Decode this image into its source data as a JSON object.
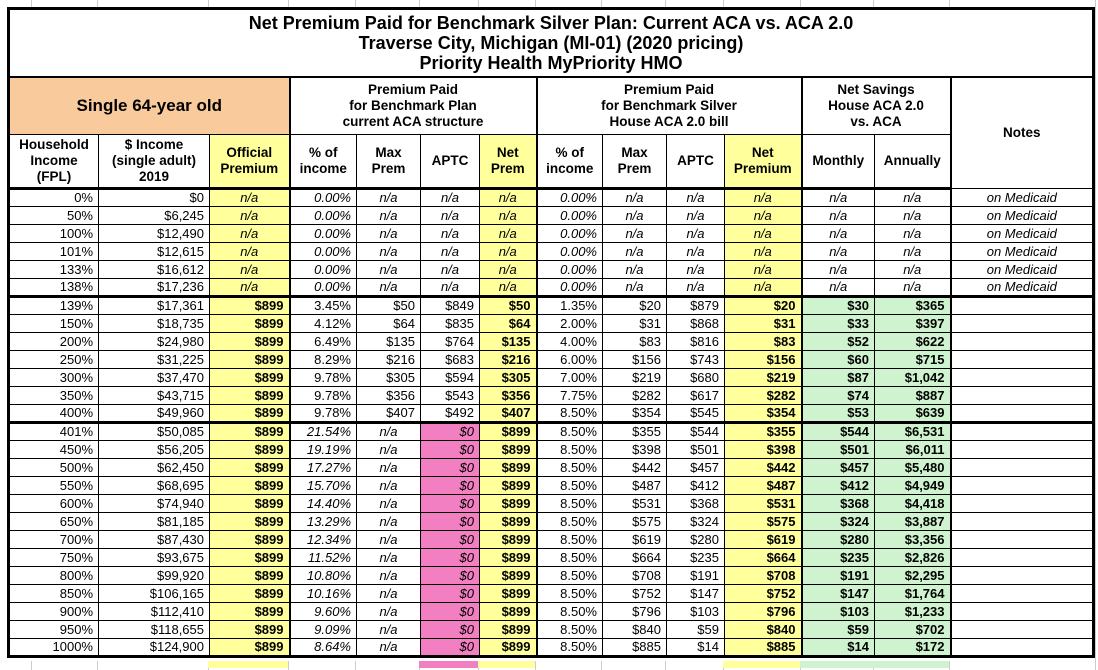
{
  "title_lines": [
    "Net Premium Paid for Benchmark Silver Plan: Current ACA vs. ACA 2.0",
    "Traverse City, Michigan (MI-01) (2020 pricing)",
    "Priority Health MyPriority HMO"
  ],
  "colors": {
    "orange": "#F9CB9C",
    "yellow": "#FFFF9C",
    "green": "#CFF3CF",
    "pink": "#F27FC1",
    "faint": "#CCCCCC"
  },
  "groups": {
    "demographic": "Single 64-year old",
    "current_aca": "Premium Paid\nfor Benchmark Plan\ncurrent ACA structure",
    "aca2": "Premium Paid\nfor Benchmark Silver\nHouse ACA 2.0 bill",
    "savings": "Net Savings\nHouse ACA 2.0\nvs. ACA",
    "notes": "Notes"
  },
  "table": {
    "col_keys": [
      "fpl",
      "income",
      "official",
      "aca_pct",
      "aca_max",
      "aca_aptc",
      "aca_net",
      "h_pct",
      "h_max",
      "h_aptc",
      "h_net",
      "monthly",
      "annually",
      "notes"
    ],
    "columns": [
      "Household\nIncome\n(FPL)",
      "$ Income\n(single adult)\n2019",
      "Official\nPremium",
      "% of\nincome",
      "Max\nPrem",
      "APTC",
      "Net\nPrem",
      "% of\nincome",
      "Max\nPrem",
      "APTC",
      "Net\nPremium",
      "Monthly",
      "Annually"
    ],
    "rows": [
      {
        "type": "medicaid",
        "cells": [
          "0%",
          "$0",
          "n/a",
          "0.00%",
          "n/a",
          "n/a",
          "n/a",
          "0.00%",
          "n/a",
          "n/a",
          "n/a",
          "n/a",
          "n/a",
          "on Medicaid"
        ]
      },
      {
        "type": "medicaid",
        "cells": [
          "50%",
          "$6,245",
          "n/a",
          "0.00%",
          "n/a",
          "n/a",
          "n/a",
          "0.00%",
          "n/a",
          "n/a",
          "n/a",
          "n/a",
          "n/a",
          "on Medicaid"
        ]
      },
      {
        "type": "medicaid",
        "cells": [
          "100%",
          "$12,490",
          "n/a",
          "0.00%",
          "n/a",
          "n/a",
          "n/a",
          "0.00%",
          "n/a",
          "n/a",
          "n/a",
          "n/a",
          "n/a",
          "on Medicaid"
        ]
      },
      {
        "type": "medicaid",
        "cells": [
          "101%",
          "$12,615",
          "n/a",
          "0.00%",
          "n/a",
          "n/a",
          "n/a",
          "0.00%",
          "n/a",
          "n/a",
          "n/a",
          "n/a",
          "n/a",
          "on Medicaid"
        ]
      },
      {
        "type": "medicaid",
        "cells": [
          "133%",
          "$16,612",
          "n/a",
          "0.00%",
          "n/a",
          "n/a",
          "n/a",
          "0.00%",
          "n/a",
          "n/a",
          "n/a",
          "n/a",
          "n/a",
          "on Medicaid"
        ]
      },
      {
        "type": "medicaid",
        "cells": [
          "138%",
          "$17,236",
          "n/a",
          "0.00%",
          "n/a",
          "n/a",
          "n/a",
          "0.00%",
          "n/a",
          "n/a",
          "n/a",
          "n/a",
          "n/a",
          "on Medicaid"
        ]
      },
      {
        "type": "subsidized",
        "thick_top": true,
        "cells": [
          "139%",
          "$17,361",
          "$899",
          "3.45%",
          "$50",
          "$849",
          "$50",
          "1.35%",
          "$20",
          "$879",
          "$20",
          "$30",
          "$365",
          ""
        ]
      },
      {
        "type": "subsidized",
        "cells": [
          "150%",
          "$18,735",
          "$899",
          "4.12%",
          "$64",
          "$835",
          "$64",
          "2.00%",
          "$31",
          "$868",
          "$31",
          "$33",
          "$397",
          ""
        ]
      },
      {
        "type": "subsidized",
        "cells": [
          "200%",
          "$24,980",
          "$899",
          "6.49%",
          "$135",
          "$764",
          "$135",
          "4.00%",
          "$83",
          "$816",
          "$83",
          "$52",
          "$622",
          ""
        ]
      },
      {
        "type": "subsidized",
        "cells": [
          "250%",
          "$31,225",
          "$899",
          "8.29%",
          "$216",
          "$683",
          "$216",
          "6.00%",
          "$156",
          "$743",
          "$156",
          "$60",
          "$715",
          ""
        ]
      },
      {
        "type": "subsidized",
        "cells": [
          "300%",
          "$37,470",
          "$899",
          "9.78%",
          "$305",
          "$594",
          "$305",
          "7.00%",
          "$219",
          "$680",
          "$219",
          "$87",
          "$1,042",
          ""
        ]
      },
      {
        "type": "subsidized",
        "cells": [
          "350%",
          "$43,715",
          "$899",
          "9.78%",
          "$356",
          "$543",
          "$356",
          "7.75%",
          "$282",
          "$617",
          "$282",
          "$74",
          "$887",
          ""
        ]
      },
      {
        "type": "subsidized",
        "cells": [
          "400%",
          "$49,960",
          "$899",
          "9.78%",
          "$407",
          "$492",
          "$407",
          "8.50%",
          "$354",
          "$545",
          "$354",
          "$53",
          "$639",
          ""
        ]
      },
      {
        "type": "full",
        "thick_top": true,
        "cells": [
          "401%",
          "$50,085",
          "$899",
          "21.54%",
          "n/a",
          "$0",
          "$899",
          "8.50%",
          "$355",
          "$544",
          "$355",
          "$544",
          "$6,531",
          ""
        ]
      },
      {
        "type": "full",
        "cells": [
          "450%",
          "$56,205",
          "$899",
          "19.19%",
          "n/a",
          "$0",
          "$899",
          "8.50%",
          "$398",
          "$501",
          "$398",
          "$501",
          "$6,011",
          ""
        ]
      },
      {
        "type": "full",
        "cells": [
          "500%",
          "$62,450",
          "$899",
          "17.27%",
          "n/a",
          "$0",
          "$899",
          "8.50%",
          "$442",
          "$457",
          "$442",
          "$457",
          "$5,480",
          ""
        ]
      },
      {
        "type": "full",
        "cells": [
          "550%",
          "$68,695",
          "$899",
          "15.70%",
          "n/a",
          "$0",
          "$899",
          "8.50%",
          "$487",
          "$412",
          "$487",
          "$412",
          "$4,949",
          ""
        ]
      },
      {
        "type": "full",
        "cells": [
          "600%",
          "$74,940",
          "$899",
          "14.40%",
          "n/a",
          "$0",
          "$899",
          "8.50%",
          "$531",
          "$368",
          "$531",
          "$368",
          "$4,418",
          ""
        ]
      },
      {
        "type": "full",
        "cells": [
          "650%",
          "$81,185",
          "$899",
          "13.29%",
          "n/a",
          "$0",
          "$899",
          "8.50%",
          "$575",
          "$324",
          "$575",
          "$324",
          "$3,887",
          ""
        ]
      },
      {
        "type": "full",
        "cells": [
          "700%",
          "$87,430",
          "$899",
          "12.34%",
          "n/a",
          "$0",
          "$899",
          "8.50%",
          "$619",
          "$280",
          "$619",
          "$280",
          "$3,356",
          ""
        ]
      },
      {
        "type": "full",
        "cells": [
          "750%",
          "$93,675",
          "$899",
          "11.52%",
          "n/a",
          "$0",
          "$899",
          "8.50%",
          "$664",
          "$235",
          "$664",
          "$235",
          "$2,826",
          ""
        ]
      },
      {
        "type": "full",
        "cells": [
          "800%",
          "$99,920",
          "$899",
          "10.80%",
          "n/a",
          "$0",
          "$899",
          "8.50%",
          "$708",
          "$191",
          "$708",
          "$191",
          "$2,295",
          ""
        ]
      },
      {
        "type": "full",
        "cells": [
          "850%",
          "$106,165",
          "$899",
          "10.16%",
          "n/a",
          "$0",
          "$899",
          "8.50%",
          "$752",
          "$147",
          "$752",
          "$147",
          "$1,764",
          ""
        ]
      },
      {
        "type": "full",
        "cells": [
          "900%",
          "$112,410",
          "$899",
          "9.60%",
          "n/a",
          "$0",
          "$899",
          "8.50%",
          "$796",
          "$103",
          "$796",
          "$103",
          "$1,233",
          ""
        ]
      },
      {
        "type": "full",
        "cells": [
          "950%",
          "$118,655",
          "$899",
          "9.09%",
          "n/a",
          "$0",
          "$899",
          "8.50%",
          "$840",
          "$59",
          "$840",
          "$59",
          "$702",
          ""
        ]
      },
      {
        "type": "full",
        "cells": [
          "1000%",
          "$124,900",
          "$899",
          "8.64%",
          "n/a",
          "$0",
          "$899",
          "8.50%",
          "$885",
          "$14",
          "$885",
          "$14",
          "$172",
          ""
        ]
      }
    ]
  }
}
